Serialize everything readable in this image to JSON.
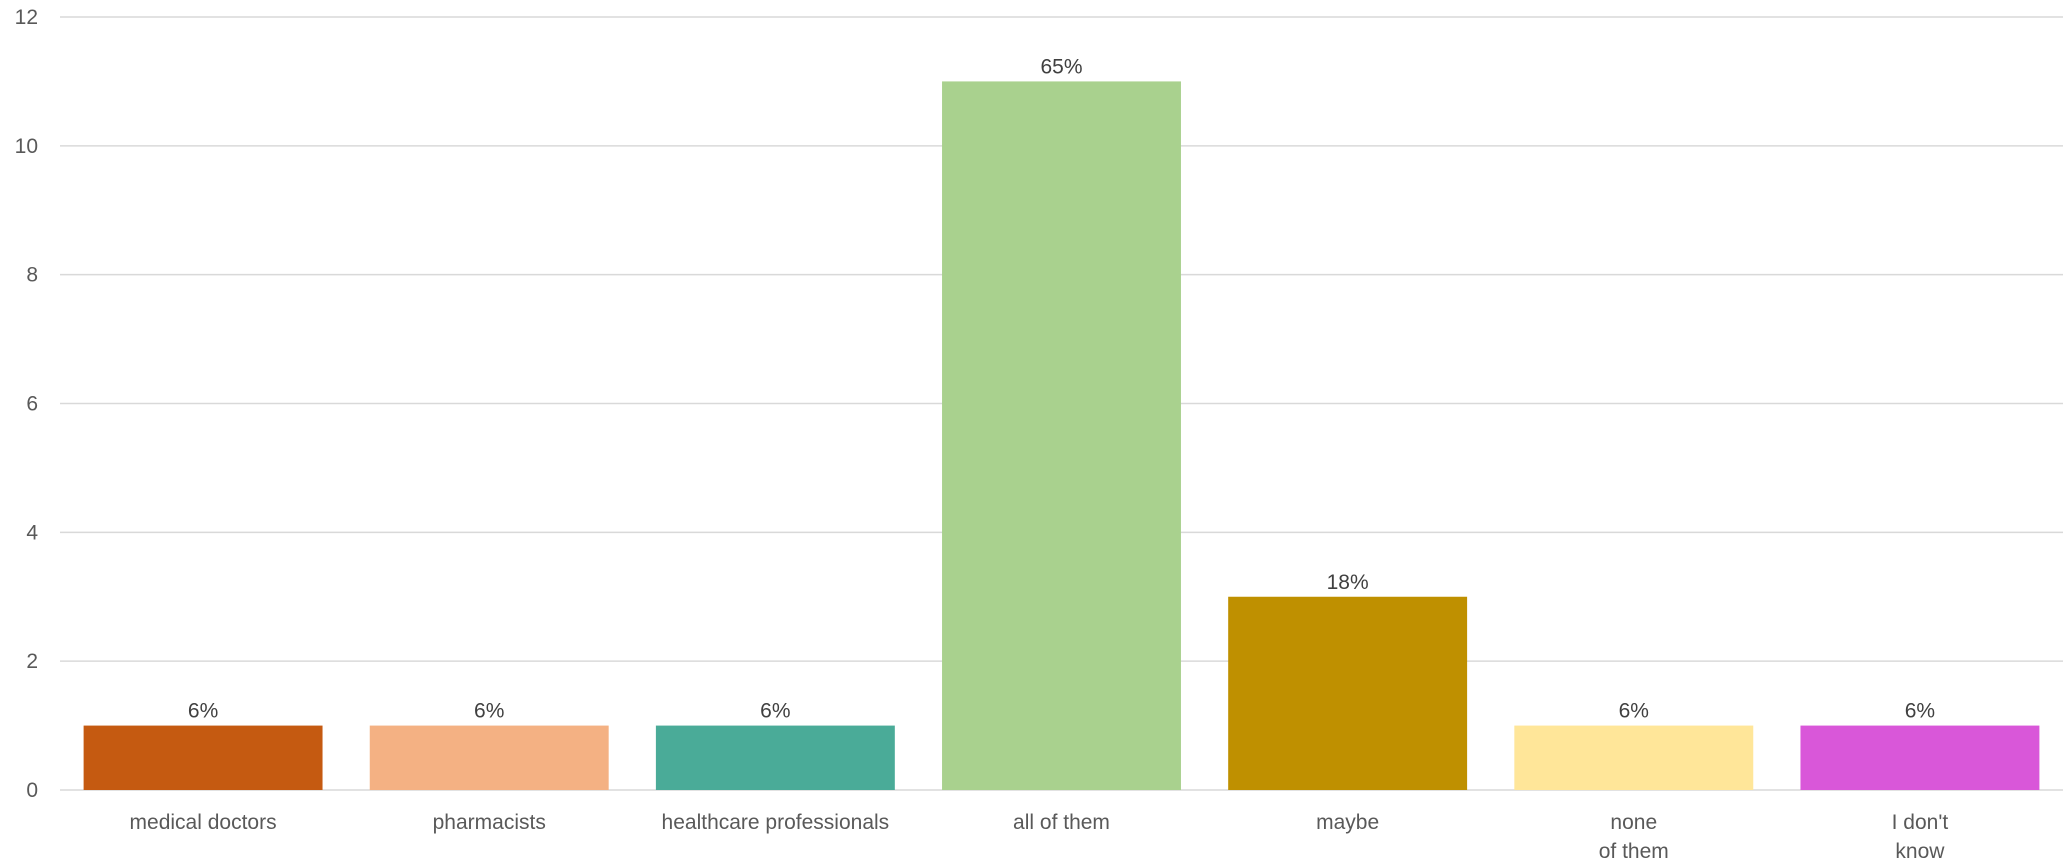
{
  "chart_data": {
    "type": "bar",
    "title": "",
    "xlabel": "",
    "ylabel": "",
    "ylim": [
      0,
      12
    ],
    "yticks": [
      0,
      2,
      4,
      6,
      8,
      10,
      12
    ],
    "grid": true,
    "legend": "none",
    "categories": [
      [
        "medical doctors"
      ],
      [
        "pharmacists"
      ],
      [
        "healthcare professionals"
      ],
      [
        "all of them"
      ],
      [
        "maybe"
      ],
      [
        "none",
        "of them"
      ],
      [
        "I don't",
        "know"
      ]
    ],
    "values": [
      1,
      1,
      1,
      11,
      3,
      1,
      1
    ],
    "data_labels": [
      "6%",
      "6%",
      "6%",
      "65%",
      "18%",
      "6%",
      "6%"
    ],
    "colors": [
      "#c55a11",
      "#f4b183",
      "#4aab98",
      "#a9d18e",
      "#bf9000",
      "#ffe699",
      "#d957d9"
    ]
  }
}
